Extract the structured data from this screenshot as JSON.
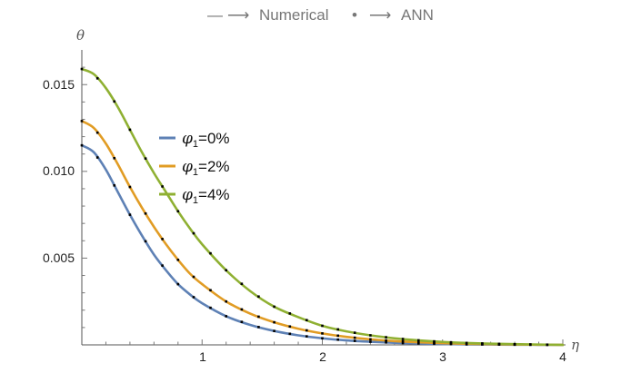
{
  "chart_data": {
    "type": "line",
    "header": {
      "numerical_text": "Numerical",
      "ann_text": "ANN",
      "arrow": "⟶",
      "dash": "—",
      "dot": "•"
    },
    "xlabel": "η",
    "ylabel": "θ",
    "xlim": [
      0,
      4
    ],
    "ylim": [
      0,
      0.017
    ],
    "x_ticks": [
      "1",
      "2",
      "3",
      "4"
    ],
    "y_ticks": [
      "0.005",
      "0.010",
      "0.015"
    ],
    "legend_position": "center-left",
    "marker_x": [
      0,
      0.13,
      0.27,
      0.4,
      0.53,
      0.67,
      0.8,
      0.93,
      1.07,
      1.2,
      1.33,
      1.47,
      1.6,
      1.73,
      1.87,
      2.0,
      2.13,
      2.27,
      2.4,
      2.53,
      2.67,
      2.8,
      2.93,
      3.07,
      3.2,
      3.33,
      3.47,
      3.6,
      3.73,
      3.87
    ],
    "series": [
      {
        "name": "φ₁=0%",
        "legend_base": "φ",
        "legend_sub": "1",
        "legend_value": "=0%",
        "color": "#5e81b5",
        "x": [
          0,
          0.1,
          0.2,
          0.3,
          0.4,
          0.5,
          0.6,
          0.7,
          0.8,
          0.9,
          1.0,
          1.2,
          1.4,
          1.6,
          1.8,
          2.0,
          2.2,
          2.4,
          2.6,
          2.8,
          3.0,
          3.2,
          3.4,
          3.6,
          3.8,
          4.0
        ],
        "y": [
          0.0115,
          0.0111,
          0.0101,
          0.0088,
          0.0075,
          0.0063,
          0.0052,
          0.0043,
          0.0035,
          0.0029,
          0.0024,
          0.00165,
          0.00115,
          0.0008,
          0.00055,
          0.00038,
          0.00026,
          0.00018,
          0.00012,
          8e-05,
          5e-05,
          3e-05,
          2e-05,
          1e-05,
          5e-06,
          0.0
        ]
      },
      {
        "name": "φ₁=2%",
        "legend_base": "φ",
        "legend_sub": "1",
        "legend_value": "=2%",
        "color": "#e19c24",
        "x": [
          0,
          0.1,
          0.2,
          0.3,
          0.4,
          0.5,
          0.6,
          0.7,
          0.8,
          0.9,
          1.0,
          1.2,
          1.4,
          1.6,
          1.8,
          2.0,
          2.2,
          2.4,
          2.6,
          2.8,
          3.0,
          3.2,
          3.4,
          3.6,
          3.8,
          4.0
        ],
        "y": [
          0.0129,
          0.0125,
          0.0116,
          0.0104,
          0.0091,
          0.0079,
          0.0068,
          0.0058,
          0.0049,
          0.0041,
          0.0035,
          0.0025,
          0.0018,
          0.0013,
          0.00093,
          0.00066,
          0.00046,
          0.00032,
          0.00022,
          0.00015,
          0.0001,
          6e-05,
          4e-05,
          2e-05,
          1e-05,
          0.0
        ]
      },
      {
        "name": "φ₁=4%",
        "legend_base": "φ",
        "legend_sub": "1",
        "legend_value": "=4%",
        "color": "#8fb032",
        "x": [
          0,
          0.1,
          0.2,
          0.3,
          0.4,
          0.5,
          0.6,
          0.7,
          0.8,
          0.9,
          1.0,
          1.2,
          1.4,
          1.6,
          1.8,
          2.0,
          2.2,
          2.4,
          2.6,
          2.8,
          3.0,
          3.2,
          3.4,
          3.6,
          3.8,
          4.0
        ],
        "y": [
          0.0159,
          0.0156,
          0.0148,
          0.0137,
          0.0124,
          0.0111,
          0.0099,
          0.0088,
          0.0077,
          0.0067,
          0.0058,
          0.0043,
          0.0031,
          0.0022,
          0.0016,
          0.0011,
          0.00078,
          0.00055,
          0.00038,
          0.00026,
          0.00017,
          0.00011,
          7e-05,
          4e-05,
          2e-05,
          0.0
        ]
      }
    ]
  }
}
